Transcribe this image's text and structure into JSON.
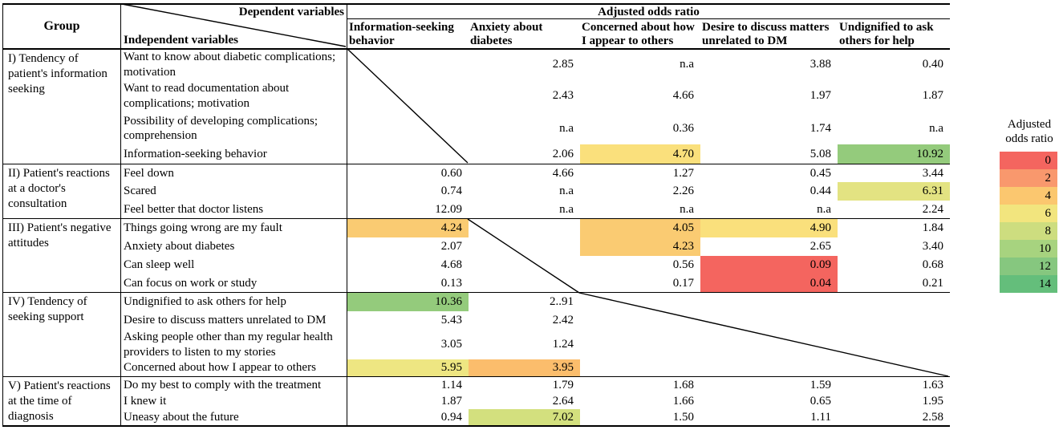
{
  "header": {
    "group_col": "Group",
    "dependent_label": "Dependent variables",
    "independent_label": "Independent variables",
    "odds_ratio_span": "Adjusted odds ratio",
    "columns": [
      "Information-seeking behavior",
      "Anxiety about diabetes",
      "Concerned about how I appear to others",
      "Desire to discuss matters unrelated to DM",
      "Undignified to ask others for help"
    ]
  },
  "groups": [
    {
      "label": "I) Tendency of patient's information seeking",
      "rows": [
        {
          "variable": "Want to know about diabetic complications; motivation",
          "values": [
            "",
            "2.85",
            "n.a",
            "3.88",
            "0.40"
          ],
          "highlights": [
            null,
            null,
            null,
            null,
            null
          ]
        },
        {
          "variable": "Want to read documentation about complications; motivation",
          "values": [
            "",
            "2.43",
            "4.66",
            "1.97",
            "1.87"
          ],
          "highlights": [
            null,
            null,
            null,
            null,
            null
          ]
        },
        {
          "variable": "Possibility of developing complications; comprehension",
          "values": [
            "",
            "n.a",
            "0.36",
            "1.74",
            "n.a"
          ],
          "highlights": [
            null,
            null,
            null,
            null,
            null
          ]
        },
        {
          "variable": "Information-seeking behavior",
          "values": [
            "",
            "2.06",
            "4.70",
            "5.08",
            "10.92"
          ],
          "highlights": [
            null,
            null,
            "#FAE07C",
            null,
            "#94CB7C"
          ]
        }
      ]
    },
    {
      "label": "II) Patient's reactions at a doctor's consultation",
      "rows": [
        {
          "variable": "Feel down",
          "values": [
            "0.60",
            "4.66",
            "1.27",
            "0.45",
            "3.44"
          ],
          "highlights": [
            null,
            null,
            null,
            null,
            null
          ]
        },
        {
          "variable": "Scared",
          "values": [
            "0.74",
            "n.a",
            "2.26",
            "0.44",
            "6.31"
          ],
          "highlights": [
            null,
            null,
            null,
            null,
            "#E3E382"
          ]
        },
        {
          "variable": "Feel better that doctor listens",
          "values": [
            "12.09",
            "n.a",
            "n.a",
            "n.a",
            "2.24"
          ],
          "highlights": [
            null,
            null,
            null,
            null,
            null
          ]
        }
      ]
    },
    {
      "label": "III) Patient's negative attitudes",
      "rows": [
        {
          "variable": "Things going wrong are my fault",
          "values": [
            "4.24",
            "",
            "4.05",
            "4.90",
            "1.84"
          ],
          "highlights": [
            "#FACB72",
            null,
            "#FACB72",
            "#FAE07C",
            null
          ]
        },
        {
          "variable": "Anxiety about diabetes",
          "values": [
            "2.07",
            "",
            "4.23",
            "2.65",
            "3.40"
          ],
          "highlights": [
            null,
            null,
            "#FACB72",
            null,
            null
          ]
        },
        {
          "variable": "Can sleep well",
          "values": [
            "4.68",
            "",
            "0.56",
            "0.09",
            "0.68"
          ],
          "highlights": [
            null,
            null,
            null,
            "#F4655F",
            null
          ]
        },
        {
          "variable": "Can focus on work or study",
          "values": [
            "0.13",
            "",
            "0.17",
            "0.04",
            "0.21"
          ],
          "highlights": [
            null,
            null,
            null,
            "#F4655F",
            null
          ]
        }
      ]
    },
    {
      "label": "IV) Tendency of seeking support",
      "rows": [
        {
          "variable": "Undignified to ask others for help",
          "values": [
            "10.36",
            "2..91",
            "",
            "",
            ""
          ],
          "highlights": [
            "#94CB7C",
            null,
            null,
            null,
            null
          ]
        },
        {
          "variable": "Desire to discuss matters unrelated to DM",
          "values": [
            "5.43",
            "2.42",
            "",
            "",
            ""
          ],
          "highlights": [
            null,
            null,
            null,
            null,
            null
          ]
        },
        {
          "variable": "Asking people other than my regular health providers to listen to my stories",
          "values": [
            "3.05",
            "1.24",
            "",
            "",
            ""
          ],
          "highlights": [
            null,
            null,
            null,
            null,
            null
          ]
        },
        {
          "variable": "Concerned about how I appear to others",
          "values": [
            "5.95",
            "3.95",
            "",
            "",
            ""
          ],
          "highlights": [
            "#EEE682",
            "#FBBD6C",
            null,
            null,
            null
          ]
        }
      ]
    },
    {
      "label": "V) Patient's reactions at the time of diagnosis",
      "rows": [
        {
          "variable": "Do my best to comply with the treatment",
          "values": [
            "1.14",
            "1.79",
            "1.68",
            "1.59",
            "1.63"
          ],
          "highlights": [
            null,
            null,
            null,
            null,
            null
          ]
        },
        {
          "variable": "I knew it",
          "values": [
            "1.87",
            "2.64",
            "1.66",
            "0.65",
            "1.95"
          ],
          "highlights": [
            null,
            null,
            null,
            null,
            null
          ]
        },
        {
          "variable": "Uneasy about the future",
          "values": [
            "0.94",
            "7.02",
            "1.50",
            "1.11",
            "2.58"
          ],
          "highlights": [
            null,
            "#D3E07E",
            null,
            null,
            null
          ]
        }
      ]
    }
  ],
  "legend": {
    "title_line1": "Adjusted",
    "title_line2": "odds ratio",
    "bands": [
      {
        "label": "0",
        "color": "#F4655F"
      },
      {
        "label": "2",
        "color": "#F9986D"
      },
      {
        "label": "4",
        "color": "#FBC76F"
      },
      {
        "label": "6",
        "color": "#F2E57E"
      },
      {
        "label": "8",
        "color": "#CDDD7F"
      },
      {
        "label": "10",
        "color": "#A7D37F"
      },
      {
        "label": "12",
        "color": "#86C77F"
      },
      {
        "label": "14",
        "color": "#64BE7B"
      }
    ]
  }
}
